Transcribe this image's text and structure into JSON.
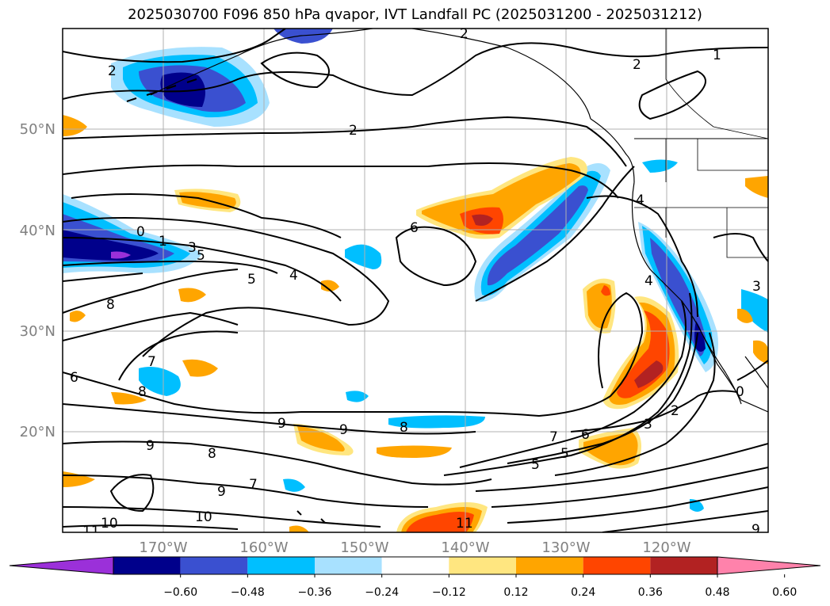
{
  "title": "2025030700 F096 850 hPa qvapor, IVT Landfall PC (2025031200 - 2025031212)",
  "longitude_labels": [
    "170°W",
    "160°W",
    "150°W",
    "140°W",
    "130°W",
    "120°W"
  ],
  "latitude_labels": [
    "50°N",
    "40°N",
    "30°N",
    "20°N"
  ],
  "colorbar": {
    "tick_labels": [
      "−0.60",
      "−0.48",
      "−0.36",
      "−0.24",
      "−0.12",
      "0.12",
      "0.24",
      "0.36",
      "0.48",
      "0.60"
    ],
    "colors": [
      "#9b30d9",
      "#00008b",
      "#3a50d0",
      "#00bfff",
      "#a8e1ff",
      "#ffffff",
      "#ffe680",
      "#ffa500",
      "#ff4500",
      "#b22222",
      "#ff82ab"
    ]
  },
  "contour_labels": [
    "2",
    "1",
    "2",
    "2",
    "0",
    "1",
    "3",
    "5",
    "4",
    "6",
    "5",
    "4",
    "8",
    "6",
    "8",
    "7",
    "9",
    "8",
    "9",
    "9",
    "8",
    "7",
    "9",
    "10",
    "10",
    "11",
    "11",
    "7",
    "6",
    "5",
    "5",
    "3",
    "2",
    "4",
    "3",
    "0",
    "9",
    "2"
  ],
  "colors": {
    "land_line": "#000000",
    "grid": "#b0b0b0",
    "tick_text": "#808080"
  }
}
